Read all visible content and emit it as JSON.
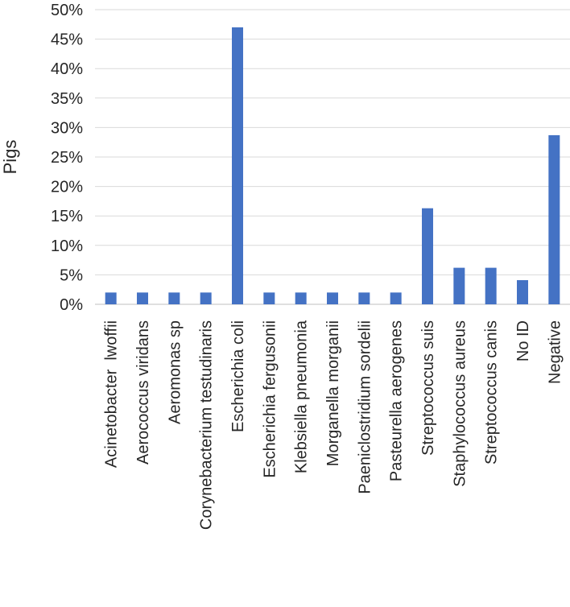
{
  "chart_data": {
    "type": "bar",
    "title": "",
    "xlabel": "",
    "ylabel": "Pigs",
    "ylim": [
      0,
      50
    ],
    "yticks": [
      "0%",
      "5%",
      "10%",
      "15%",
      "20%",
      "25%",
      "30%",
      "35%",
      "40%",
      "45%",
      "50%"
    ],
    "grid": true,
    "legend": "none",
    "bar_color": "#4472c4",
    "categories": [
      "Acinetobacter  lwoffii",
      "Aerococcus viridans",
      "Aeromonas sp",
      "Corynebacterium testudinaris",
      "Escherichia coli",
      "Escherichia fergusonii",
      "Klebsiella pneumonia",
      "Morganella morganii",
      "Paeniclostridium sordelii",
      "Pasteurella aerogenes",
      "Streptococcus suis",
      "Staphylococcus aureus",
      "Streptococcus canis",
      "No ID",
      "Negative"
    ],
    "values": [
      2.0,
      2.0,
      2.0,
      2.0,
      47.0,
      2.0,
      2.0,
      2.0,
      2.0,
      2.0,
      16.3,
      6.2,
      6.2,
      4.1,
      28.7
    ]
  }
}
